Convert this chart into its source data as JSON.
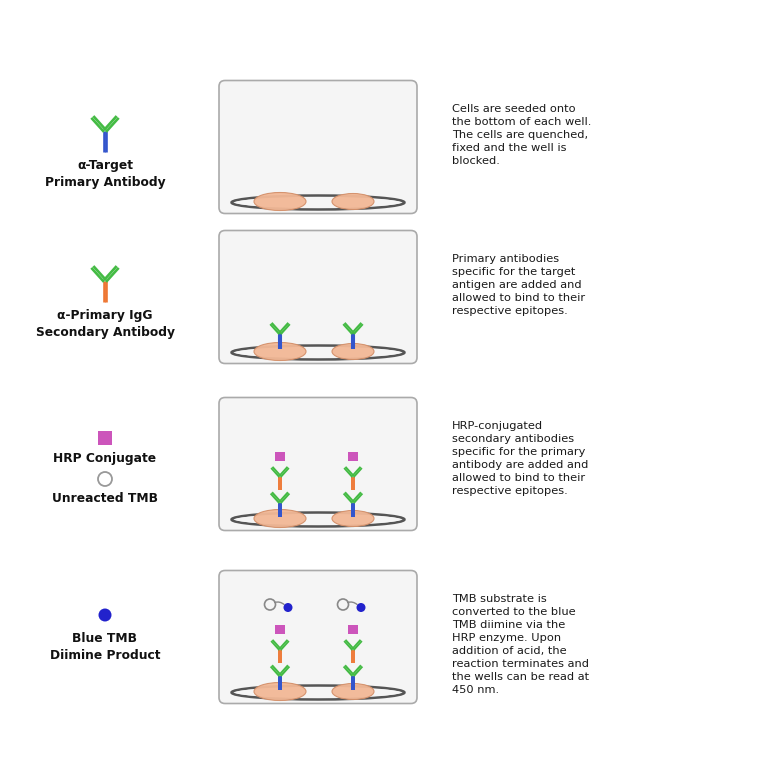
{
  "rows": [
    {
      "legend_label": "α-Target\nPrimary Antibody",
      "description": "Cells are seeded onto\nthe bottom of each well.\nThe cells are quenched,\nfixed and the well is\nblocked.",
      "well_stage": 1,
      "icon_type": "antibody_green_blue"
    },
    {
      "legend_label": "α-Primary IgG\nSecondary Antibody",
      "description": "Primary antibodies\nspecific for the target\nantigen are added and\nallowed to bind to their\nrespective epitopes.",
      "well_stage": 2,
      "icon_type": "antibody_orange_green"
    },
    {
      "legend_label": "HRP Conjugate\n\nUnreacted TMB",
      "description": "HRP-conjugated\nsecondary antibodies\nspecific for the primary\nantibody are added and\nallowed to bind to their\nrespective epitopes.",
      "well_stage": 3,
      "icon_type": "hrp_tmb"
    },
    {
      "legend_label": "Blue TMB\nDiimine Product",
      "description": "TMB substrate is\nconverted to the blue\nTMB diimine via the\nHRP enzyme. Upon\naddition of acid, the\nreaction terminates and\nthe wells can be read at\n450 nm.",
      "well_stage": 4,
      "icon_type": "blue_dot"
    }
  ],
  "background_color": "#ffffff",
  "text_color": "#1a1a1a",
  "well_border_color": "#999999",
  "well_fill_color": "#f9f9f9",
  "cell_color": "#f2b896",
  "cell_edge_color": "#d4906a",
  "green_color": "#44bb44",
  "blue_color": "#3355cc",
  "orange_color": "#ee7733",
  "pink_hrp_color": "#cc55bb",
  "hrp_box_color": "#cc55bb",
  "tmb_blue_color": "#2222cc",
  "well_bottom_shadow": "#555555"
}
